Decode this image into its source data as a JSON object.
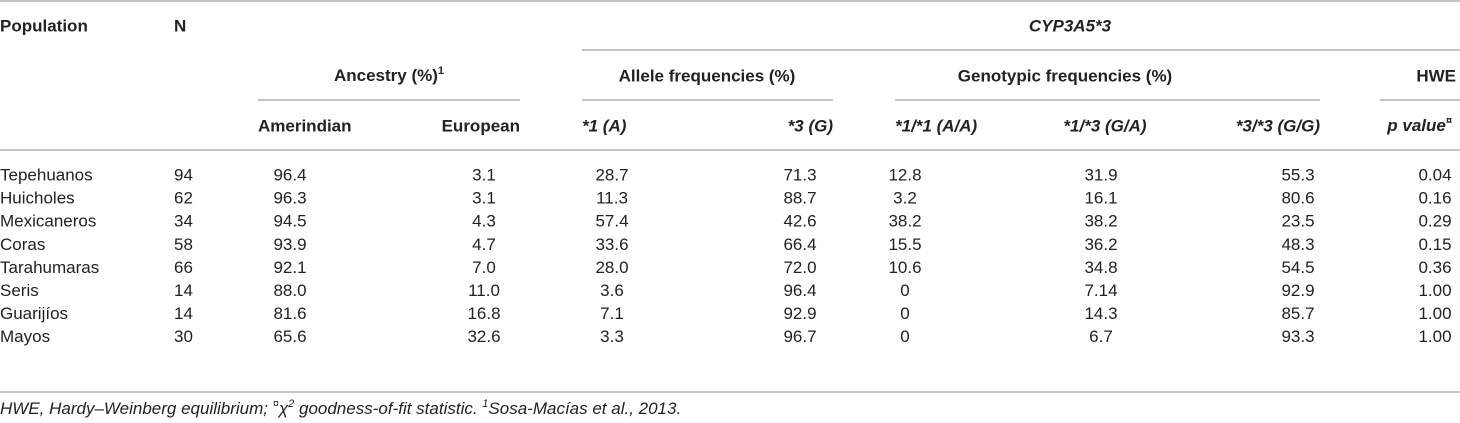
{
  "table": {
    "header": {
      "population": "Population",
      "n": "N",
      "gene": "CYP3A5*3",
      "ancestry": {
        "label": "Ancestry (%)",
        "sup": "1"
      },
      "allele": "Allele frequencies (%)",
      "genotypic": "Genotypic frequencies (%)",
      "hwe": "HWE",
      "columns": [
        "Amerindian",
        "European",
        "*1 (A)",
        "*3 (G)",
        "*1/*1 (A/A)",
        "*1/*3 (G/A)",
        "*3/*3 (G/G)"
      ],
      "p_value": {
        "label": "p value",
        "sup": "¤"
      }
    },
    "rows": [
      [
        "Tepehuanos",
        "94",
        "96.4",
        "3.1",
        "28.7",
        "71.3",
        "12.8",
        "31.9",
        "55.3",
        "0.04"
      ],
      [
        "Huicholes",
        "62",
        "96.3",
        "3.1",
        "11.3",
        "88.7",
        "3.2",
        "16.1",
        "80.6",
        "0.16"
      ],
      [
        "Mexicaneros",
        "34",
        "94.5",
        "4.3",
        "57.4",
        "42.6",
        "38.2",
        "38.2",
        "23.5",
        "0.29"
      ],
      [
        "Coras",
        "58",
        "93.9",
        "4.7",
        "33.6",
        "66.4",
        "15.5",
        "36.2",
        "48.3",
        "0.15"
      ],
      [
        "Tarahumaras",
        "66",
        "92.1",
        "7.0",
        "28.0",
        "72.0",
        "10.6",
        "34.8",
        "54.5",
        "0.36"
      ],
      [
        "Seris",
        "14",
        "88.0",
        "11.0",
        "3.6",
        "96.4",
        "0",
        "7.14",
        "92.9",
        "1.00"
      ],
      [
        "Guarijíos",
        "14",
        "81.6",
        "16.8",
        "7.1",
        "92.9",
        "0",
        "14.3",
        "85.7",
        "1.00"
      ],
      [
        "Mayos",
        "30",
        "65.6",
        "32.6",
        "3.3",
        "96.7",
        "0",
        "6.7",
        "93.3",
        "1.00"
      ]
    ]
  },
  "footnote": {
    "abbreviation": "HWE, Hardy–Weinberg equilibrium; ",
    "symbol": "¤",
    "chi": "χ",
    "chi_sup": "2",
    "statistic": " goodness-of-fit statistic. ",
    "ref_sup": "1",
    "reference": "Sosa-Macías et al., 2013."
  }
}
